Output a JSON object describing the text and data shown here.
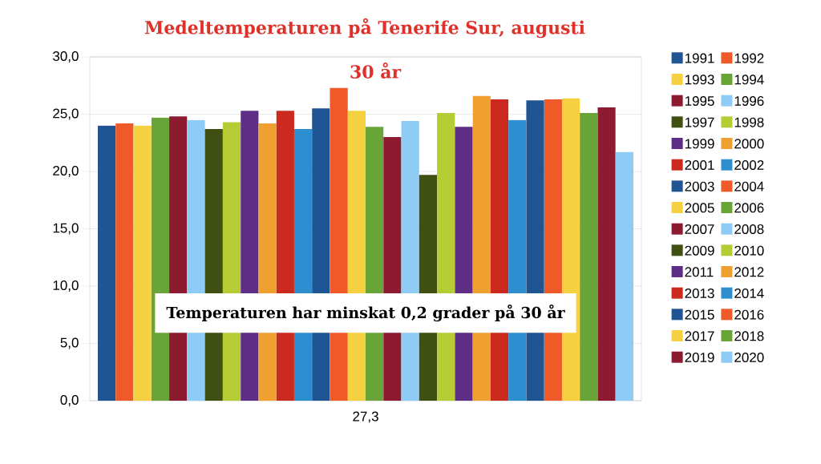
{
  "chart_data": {
    "type": "bar",
    "title": "Medeltemperaturen på Tenerife Sur, augusti",
    "subtitle": "30 år",
    "categories": [
      "27,3"
    ],
    "series": [
      {
        "name": "1991",
        "color": "#1f5592",
        "values": [
          24.0
        ]
      },
      {
        "name": "1992",
        "color": "#f05a28",
        "values": [
          24.2
        ]
      },
      {
        "name": "1993",
        "color": "#f5d040",
        "values": [
          24.0
        ]
      },
      {
        "name": "1994",
        "color": "#68a437",
        "values": [
          24.7
        ]
      },
      {
        "name": "1995",
        "color": "#8c1a30",
        "values": [
          24.8
        ]
      },
      {
        "name": "1996",
        "color": "#8ecbf5",
        "values": [
          24.5
        ]
      },
      {
        "name": "1997",
        "color": "#404f12",
        "values": [
          23.7
        ]
      },
      {
        "name": "1998",
        "color": "#b5cc35",
        "values": [
          24.3
        ]
      },
      {
        "name": "1999",
        "color": "#5e2d86",
        "values": [
          25.3
        ]
      },
      {
        "name": "2000",
        "color": "#f0a030",
        "values": [
          24.2
        ]
      },
      {
        "name": "2001",
        "color": "#cc2a1e",
        "values": [
          25.3
        ]
      },
      {
        "name": "2002",
        "color": "#2e8fd0",
        "values": [
          23.7
        ]
      },
      {
        "name": "2003",
        "color": "#1f5592",
        "values": [
          25.5
        ]
      },
      {
        "name": "2004",
        "color": "#f05a28",
        "values": [
          27.3
        ]
      },
      {
        "name": "2005",
        "color": "#f5d040",
        "values": [
          25.3
        ]
      },
      {
        "name": "2006",
        "color": "#68a437",
        "values": [
          23.9
        ]
      },
      {
        "name": "2007",
        "color": "#8c1a30",
        "values": [
          23.0
        ]
      },
      {
        "name": "2008",
        "color": "#8ecbf5",
        "values": [
          24.4
        ]
      },
      {
        "name": "2009",
        "color": "#404f12",
        "values": [
          19.7
        ]
      },
      {
        "name": "2010",
        "color": "#b5cc35",
        "values": [
          25.1
        ]
      },
      {
        "name": "2011",
        "color": "#5e2d86",
        "values": [
          23.9
        ]
      },
      {
        "name": "2012",
        "color": "#f0a030",
        "values": [
          26.6
        ]
      },
      {
        "name": "2013",
        "color": "#cc2a1e",
        "values": [
          26.3
        ]
      },
      {
        "name": "2014",
        "color": "#2e8fd0",
        "values": [
          24.5
        ]
      },
      {
        "name": "2015",
        "color": "#1f5592",
        "values": [
          26.2
        ]
      },
      {
        "name": "2016",
        "color": "#f05a28",
        "values": [
          26.3
        ]
      },
      {
        "name": "2017",
        "color": "#f5d040",
        "values": [
          26.4
        ]
      },
      {
        "name": "2018",
        "color": "#68a437",
        "values": [
          25.1
        ]
      },
      {
        "name": "2019",
        "color": "#8c1a30",
        "values": [
          25.6
        ]
      },
      {
        "name": "2020",
        "color": "#8ecbf5",
        "values": [
          21.7
        ]
      }
    ],
    "ylim": [
      0,
      30
    ],
    "yticks": [
      {
        "value": 0,
        "label": "0,0"
      },
      {
        "value": 5,
        "label": "5,0"
      },
      {
        "value": 10,
        "label": "10,0"
      },
      {
        "value": 15,
        "label": "15,0"
      },
      {
        "value": 20,
        "label": "20,0"
      },
      {
        "value": 25,
        "label": "25,0"
      },
      {
        "value": 30,
        "label": "30,0"
      }
    ],
    "grid": "y",
    "legend": "right",
    "annotations": [
      "Temperaturen har minskat 0,2 grader på 30 år"
    ]
  }
}
